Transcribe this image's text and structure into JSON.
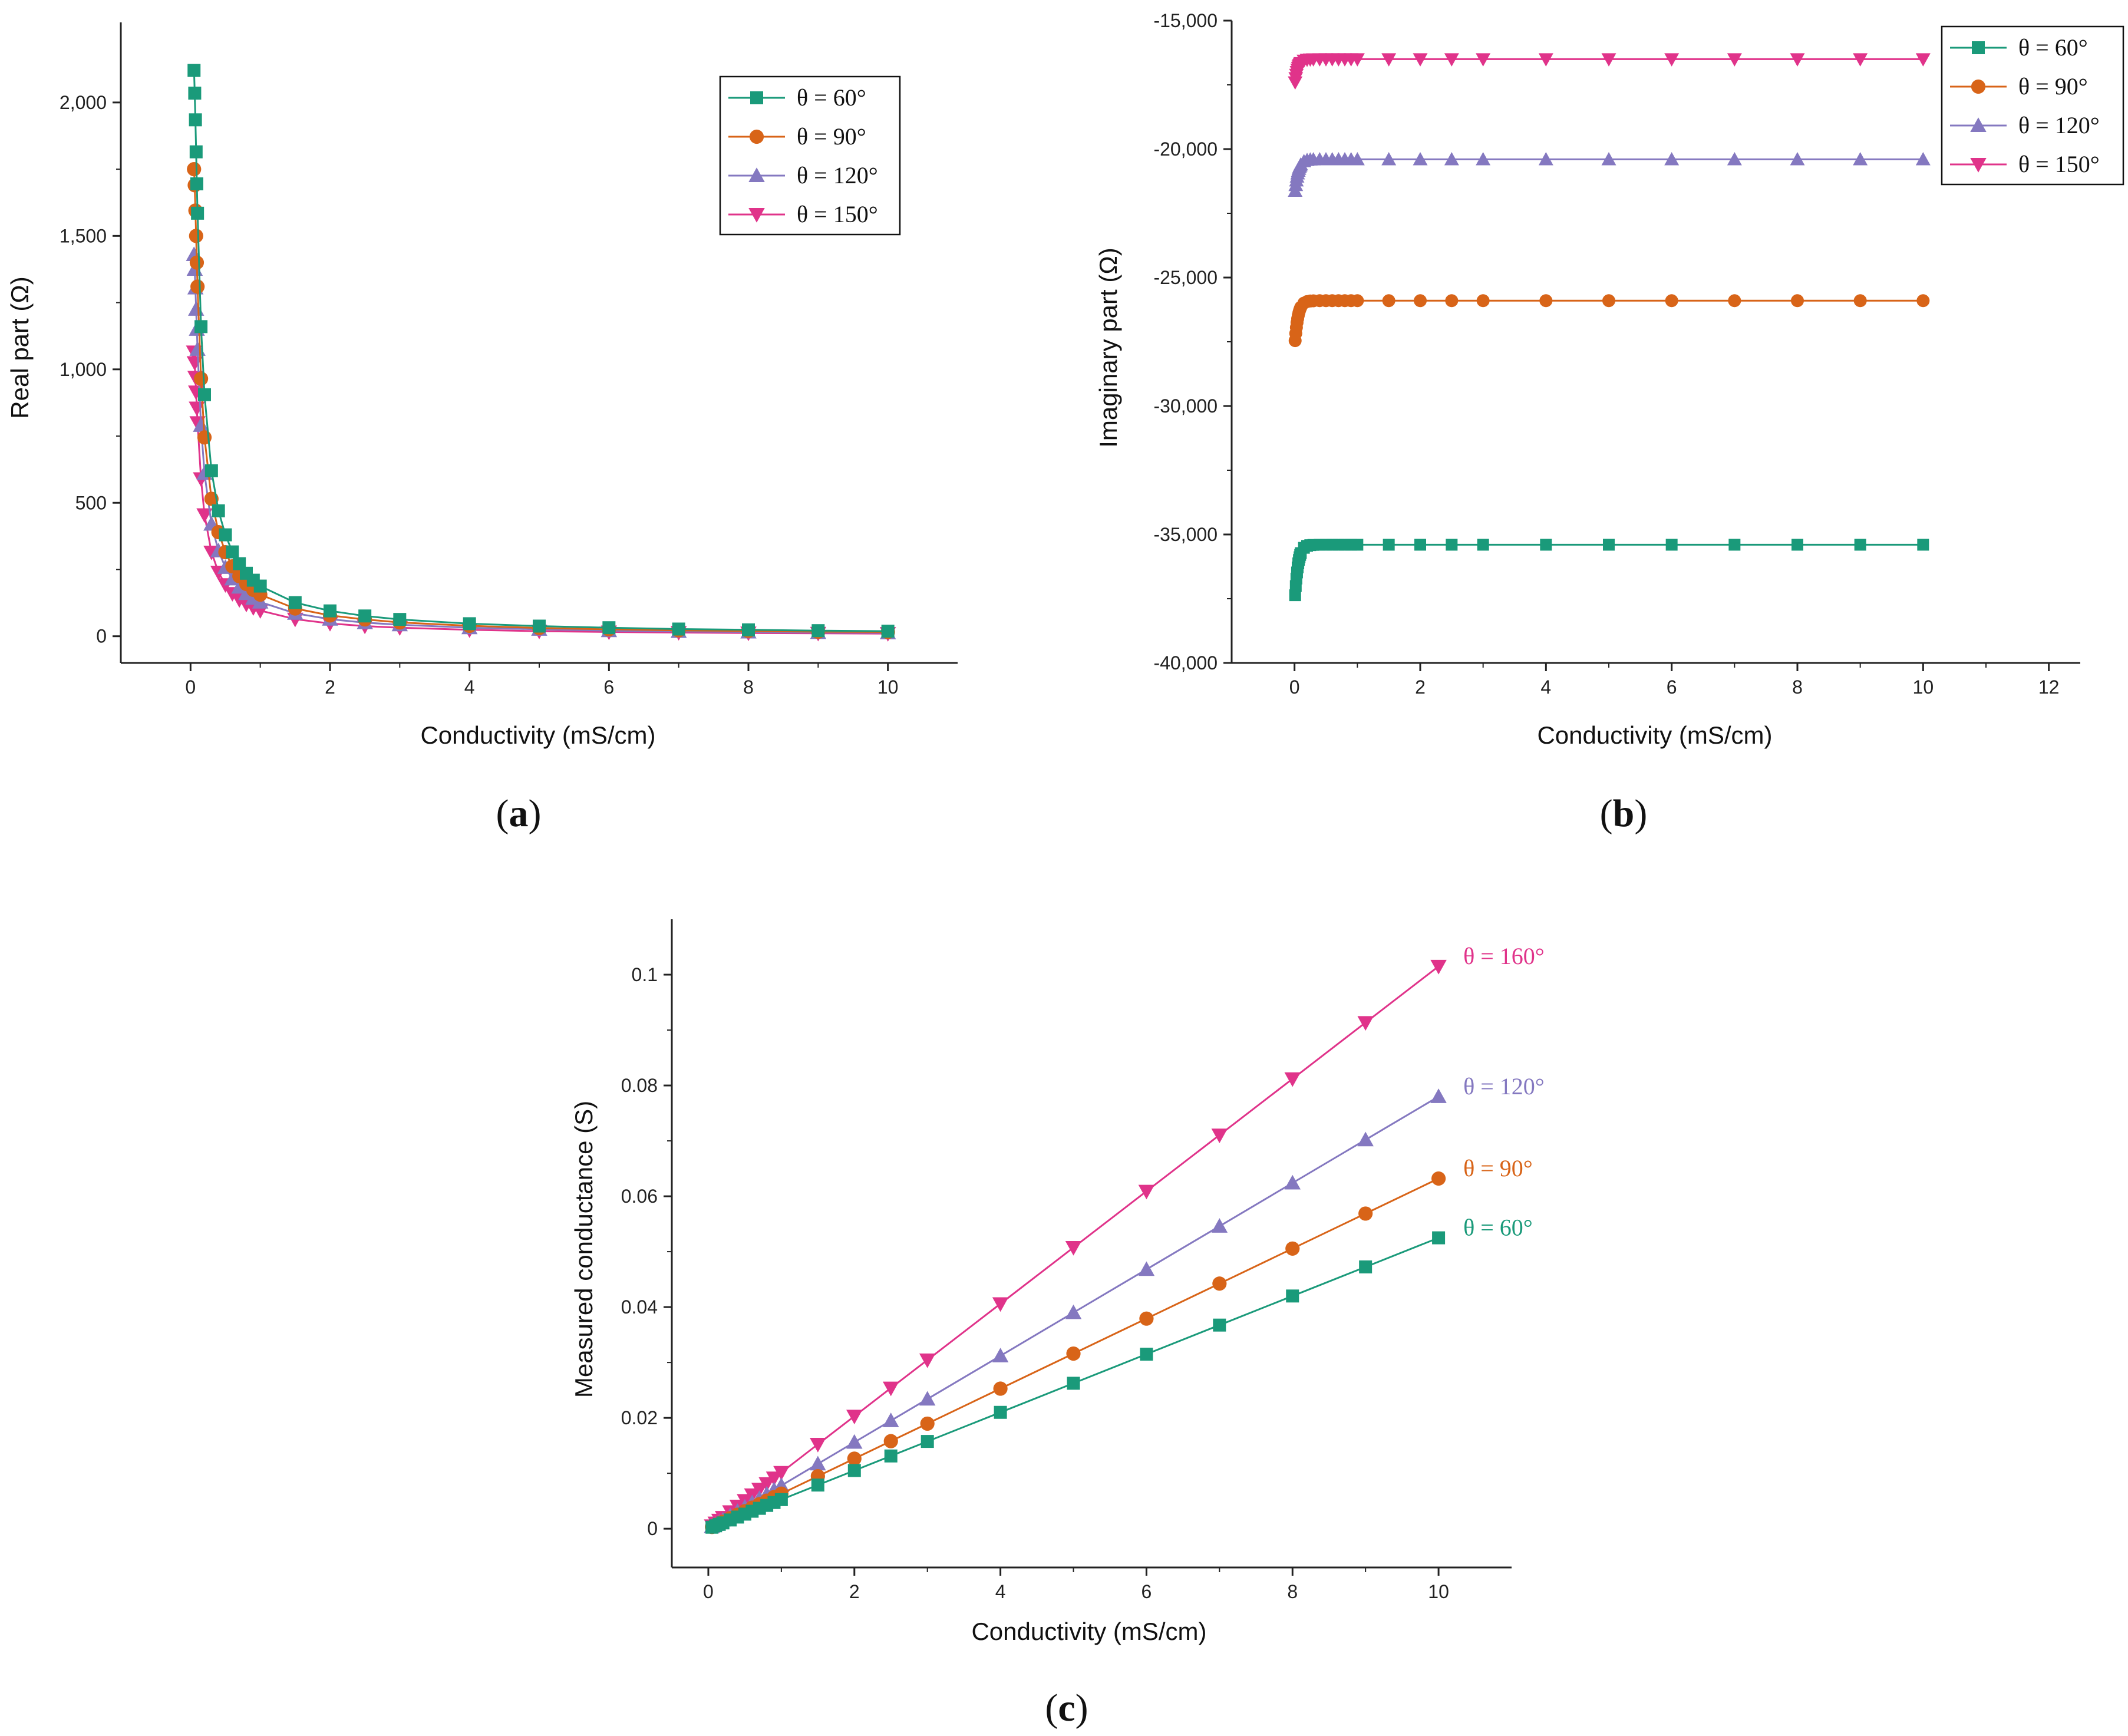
{
  "colors": {
    "theta60": "#1a9a7a",
    "theta90": "#d86418",
    "theta120": "#8478c0",
    "theta150": "#e0338a",
    "theta160": "#e0338a",
    "axis": "#222222"
  },
  "chart_data": [
    {
      "id": "a",
      "panel_label": "a",
      "type": "line",
      "xlabel": "Conductivity (mS/cm)",
      "ylabel": "Real part (Ω)",
      "xlim": [
        -1,
        11
      ],
      "ylim": [
        -100,
        2300
      ],
      "xticks": [
        0,
        2,
        4,
        6,
        8,
        10
      ],
      "xtick_labels": [
        "0",
        "2",
        "4",
        "6",
        "8",
        "10"
      ],
      "yticks": [
        0,
        500,
        1000,
        1500,
        2000
      ],
      "ytick_labels": [
        "0",
        "500",
        "1,000",
        "1,500",
        "2,000"
      ],
      "legend_position": "top-right",
      "x": [
        0.05,
        0.06,
        0.07,
        0.08,
        0.09,
        0.1,
        0.15,
        0.2,
        0.3,
        0.4,
        0.5,
        0.6,
        0.7,
        0.8,
        0.9,
        1.0,
        1.5,
        2,
        2.5,
        3,
        4,
        5,
        6,
        7,
        8,
        9,
        10
      ],
      "series": [
        {
          "name": "θ = 60°",
          "marker": "square",
          "color_key": "theta60",
          "values": [
            2120,
            2035,
            1935,
            1815,
            1695,
            1585,
            1160,
            905,
            620,
            470,
            380,
            316,
            272,
            236,
            210,
            188,
            126,
            95,
            76,
            63,
            47,
            38,
            32,
            27,
            24,
            21,
            19
          ]
        },
        {
          "name": "θ = 90°",
          "marker": "circle",
          "color_key": "theta90",
          "values": [
            1750,
            1690,
            1595,
            1500,
            1400,
            1310,
            965,
            745,
            515,
            390,
            315,
            262,
            225,
            196,
            174,
            156,
            104,
            78,
            63,
            52,
            39,
            31,
            26,
            22,
            20,
            17,
            16
          ]
        },
        {
          "name": "θ = 120°",
          "marker": "triangle-up",
          "color_key": "theta120",
          "values": [
            1430,
            1375,
            1305,
            1225,
            1150,
            1075,
            790,
            610,
            420,
            320,
            258,
            215,
            184,
            160,
            142,
            128,
            86,
            64,
            51,
            43,
            32,
            26,
            21,
            18,
            16,
            14,
            13
          ]
        },
        {
          "name": "θ = 150°",
          "marker": "triangle-down",
          "color_key": "theta150",
          "values": [
            1065,
            1025,
            970,
            915,
            855,
            800,
            590,
            455,
            315,
            240,
            193,
            160,
            137,
            120,
            107,
            96,
            64,
            48,
            38,
            32,
            24,
            19,
            16,
            14,
            12,
            11,
            10
          ]
        }
      ]
    },
    {
      "id": "b",
      "panel_label": "b",
      "type": "line",
      "xlabel": "Conductivity (mS/cm)",
      "ylabel": "Imaginary part (Ω)",
      "xlim": [
        -1,
        12.5
      ],
      "ylim": [
        -40000,
        -15000
      ],
      "xticks": [
        0,
        2,
        4,
        6,
        8,
        10,
        12
      ],
      "xtick_labels": [
        "0",
        "2",
        "4",
        "6",
        "8",
        "10",
        "12"
      ],
      "yticks": [
        -40000,
        -35000,
        -30000,
        -25000,
        -20000,
        -15000
      ],
      "ytick_labels": [
        "-40,000",
        "-35,000",
        "-30,000",
        "-25,000",
        "-20,000",
        "-15,000"
      ],
      "legend_position": "top-right",
      "x": [
        0.01,
        0.02,
        0.03,
        0.04,
        0.05,
        0.06,
        0.07,
        0.08,
        0.09,
        0.1,
        0.15,
        0.2,
        0.25,
        0.3,
        0.4,
        0.5,
        0.6,
        0.7,
        0.8,
        0.9,
        1.0,
        1.5,
        2,
        2.5,
        3,
        4,
        5,
        6,
        7,
        8,
        9,
        10
      ],
      "series": [
        {
          "name": "θ = 60°",
          "marker": "square",
          "color_key": "theta60",
          "start": -37800,
          "end": -35400
        },
        {
          "name": "θ = 90°",
          "marker": "circle",
          "color_key": "theta90",
          "start": -27800,
          "end": -25900
        },
        {
          "name": "θ = 120°",
          "marker": "triangle-up",
          "color_key": "theta120",
          "start": -21900,
          "end": -20400
        },
        {
          "name": "θ = 150°",
          "marker": "triangle-down",
          "color_key": "theta150",
          "start": -17600,
          "end": -16500
        }
      ]
    },
    {
      "id": "c",
      "panel_label": "c",
      "type": "line",
      "xlabel": "Conductivity (mS/cm)",
      "ylabel": "Measured conductance (S)",
      "xlim": [
        -0.5,
        11
      ],
      "ylim": [
        -0.007,
        0.11
      ],
      "xticks": [
        0,
        2,
        4,
        6,
        8,
        10
      ],
      "xtick_labels": [
        "0",
        "2",
        "4",
        "6",
        "8",
        "10"
      ],
      "yticks": [
        0,
        0.02,
        0.04,
        0.06,
        0.08,
        0.1
      ],
      "ytick_labels": [
        "0",
        "0.02",
        "0.04",
        "0.06",
        "0.08",
        "0.1"
      ],
      "legend_position": "inline-right",
      "x": [
        0.05,
        0.1,
        0.15,
        0.2,
        0.3,
        0.4,
        0.5,
        0.6,
        0.7,
        0.8,
        0.9,
        1.0,
        1.5,
        2,
        2.5,
        3,
        4,
        5,
        6,
        7,
        8,
        9,
        10
      ],
      "series": [
        {
          "name": "θ = 160°",
          "marker": "triangle-down",
          "color_key": "theta160",
          "slope": 0.01015
        },
        {
          "name": "θ = 120°",
          "marker": "triangle-up",
          "color_key": "theta120",
          "slope": 0.0078
        },
        {
          "name": "θ = 90°",
          "marker": "circle",
          "color_key": "theta90",
          "slope": 0.00632
        },
        {
          "name": "θ = 60°",
          "marker": "square",
          "color_key": "theta60",
          "slope": 0.00525
        }
      ]
    }
  ]
}
